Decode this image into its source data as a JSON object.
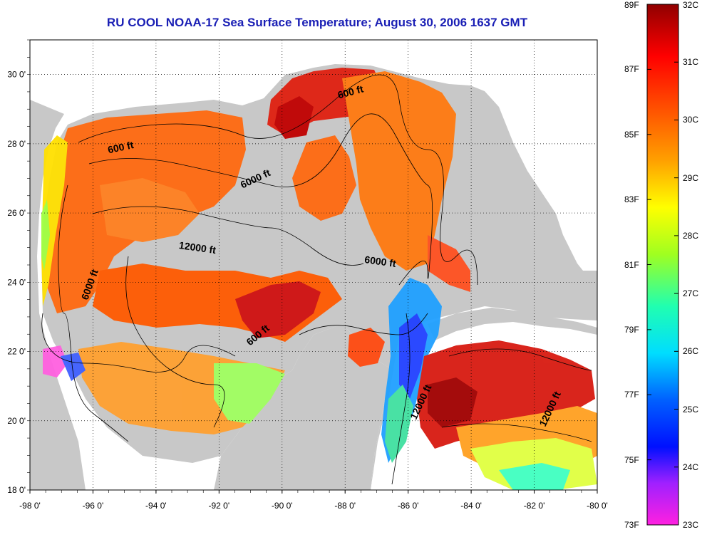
{
  "title": "RU COOL  NOAA-17  Sea Surface Temperature;  August 30, 2006 1637 GMT",
  "map": {
    "lon_range": [
      -98,
      -80
    ],
    "lat_range": [
      18,
      31
    ],
    "lon_ticks": [
      "-98 0'",
      "-96 0'",
      "-94 0'",
      "-92 0'",
      "-90 0'",
      "-88 0'",
      "-86 0'",
      "-84 0'",
      "-82 0'",
      "-80 0'"
    ],
    "lat_ticks": [
      "18 0'",
      "20 0'",
      "22 0'",
      "24 0'",
      "26 0'",
      "28 0'",
      "30 0'"
    ],
    "grid": "dotted",
    "land_color": "#c8c8c8",
    "cloud_color": "#ffffff",
    "contour_labels": [
      {
        "text": "600 ft",
        "lon": -87.8,
        "lat": 29.4
      },
      {
        "text": "600 ft",
        "lon": -95.1,
        "lat": 27.8
      },
      {
        "text": "6000 ft",
        "lon": -90.8,
        "lat": 26.9
      },
      {
        "text": "12000 ft",
        "lon": -92.7,
        "lat": 24.9
      },
      {
        "text": "6000 ft",
        "lon": -86.9,
        "lat": 24.5
      },
      {
        "text": "6000 ft",
        "lon": -96.0,
        "lat": 23.9
      },
      {
        "text": "600 ft",
        "lon": -90.7,
        "lat": 22.4
      },
      {
        "text": "12000 ft",
        "lon": -85.5,
        "lat": 20.5
      },
      {
        "text": "12000 ft",
        "lon": -81.4,
        "lat": 20.3
      }
    ]
  },
  "colorbar": {
    "fahrenheit_labels": [
      "89F",
      "87F",
      "85F",
      "83F",
      "81F",
      "79F",
      "77F",
      "75F",
      "73F"
    ],
    "celsius_labels": [
      "32C",
      "31C",
      "30C",
      "29C",
      "28C",
      "27C",
      "26C",
      "25C",
      "24C",
      "23C"
    ],
    "range_c": [
      23,
      32
    ],
    "range_f": [
      73,
      89
    ],
    "colors": [
      "#ff20e0",
      "#7a10ff",
      "#0010ff",
      "#00a0ff",
      "#00ffff",
      "#30ff80",
      "#d0ff00",
      "#ffff00",
      "#ffa000",
      "#ff4000",
      "#ff0000",
      "#a00000"
    ]
  }
}
